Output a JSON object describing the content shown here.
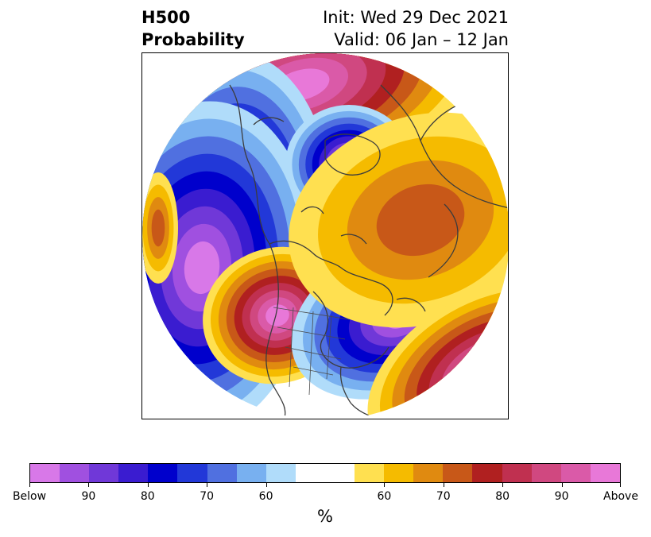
{
  "title": {
    "left_line1": "H500",
    "left_line2": "Probability",
    "right_line1": "Init: Wed 29 Dec 2021",
    "right_line2": "Valid: 06 Jan – 12 Jan"
  },
  "colorbar": {
    "colors": [
      "#d878e8",
      "#a050e0",
      "#7038d8",
      "#3a1cd0",
      "#0000cc",
      "#2238d8",
      "#5070e0",
      "#78b0f0",
      "#b0dcfa",
      "#ffffff",
      "#ffffff",
      "#ffe050",
      "#f5bb00",
      "#e08a10",
      "#c85818",
      "#b02020",
      "#c03050",
      "#d04880",
      "#da5aa8",
      "#e878d8"
    ],
    "tick_labels": [
      "Below",
      "90",
      "80",
      "70",
      "60",
      "60",
      "70",
      "80",
      "90",
      "Above"
    ],
    "unit": "%"
  },
  "map_palette": {
    "above": [
      "#ffe050",
      "#f5bb00",
      "#e08a10",
      "#c85818",
      "#b02020",
      "#c03050",
      "#d04880",
      "#da5aa8",
      "#e878d8"
    ],
    "below": [
      "#b0dcfa",
      "#78b0f0",
      "#5070e0",
      "#2238d8",
      "#0000cc",
      "#3a1cd0",
      "#7038d8",
      "#a050e0",
      "#d878e8"
    ]
  }
}
